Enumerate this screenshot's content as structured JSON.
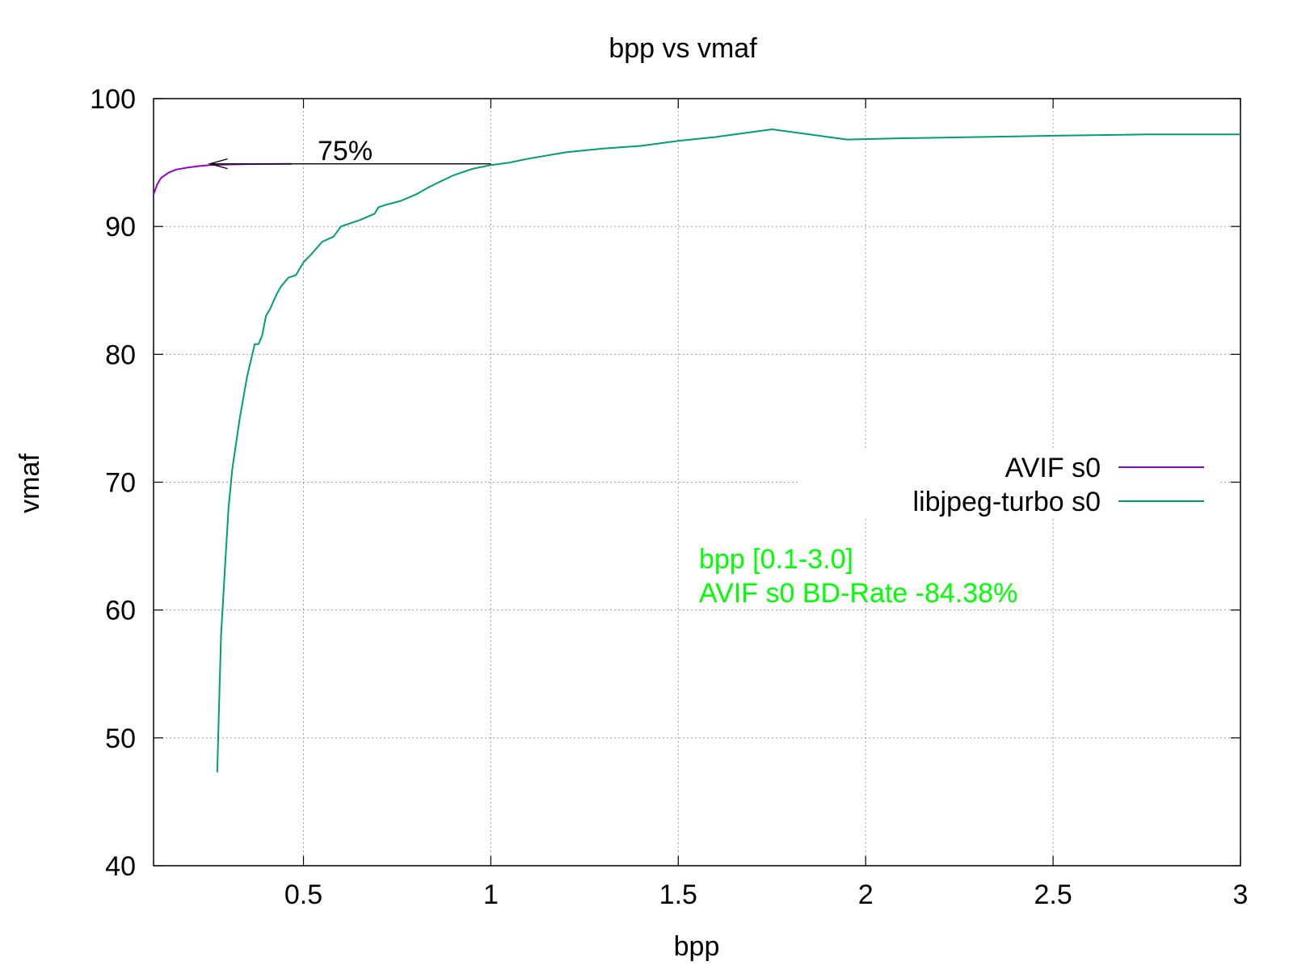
{
  "chart_data": {
    "type": "line",
    "title": "bpp vs vmaf",
    "xlabel": "bpp",
    "ylabel": "vmaf",
    "xlim": [
      0.1,
      3.0
    ],
    "ylim": [
      40,
      100
    ],
    "xticks": [
      0.5,
      1,
      1.5,
      2,
      2.5,
      3
    ],
    "xtick_labels": [
      "0.5",
      "1",
      "1.5",
      "2",
      "2.5",
      "3"
    ],
    "yticks": [
      40,
      50,
      60,
      70,
      80,
      90,
      100
    ],
    "ytick_labels": [
      "40",
      "50",
      "60",
      "70",
      "80",
      "90",
      "100"
    ],
    "grid": true,
    "legend_position": "center-right",
    "series": [
      {
        "name": "AVIF s0",
        "color": "#9400d3",
        "x": [
          0.1,
          0.11,
          0.12,
          0.14,
          0.16,
          0.19,
          0.22,
          0.25,
          0.3,
          0.36,
          0.47
        ],
        "y": [
          92.5,
          93.3,
          93.8,
          94.2,
          94.45,
          94.6,
          94.72,
          94.8,
          94.85,
          94.88,
          94.9
        ]
      },
      {
        "name": "libjpeg-turbo s0",
        "color": "#009e73",
        "x": [
          0.27,
          0.28,
          0.29,
          0.3,
          0.31,
          0.33,
          0.35,
          0.37,
          0.38,
          0.39,
          0.4,
          0.41,
          0.43,
          0.44,
          0.46,
          0.48,
          0.5,
          0.52,
          0.55,
          0.58,
          0.6,
          0.63,
          0.65,
          0.69,
          0.7,
          0.72,
          0.76,
          0.8,
          0.83,
          0.85,
          0.9,
          0.95,
          1.0,
          1.05,
          1.1,
          1.2,
          1.3,
          1.4,
          1.5,
          1.6,
          1.7,
          1.75,
          1.85,
          1.95,
          2.1,
          2.3,
          2.5,
          2.75,
          3.0
        ],
        "y": [
          47.3,
          58.0,
          63.0,
          68.0,
          71.0,
          75.0,
          78.3,
          80.8,
          80.8,
          81.5,
          83.0,
          83.5,
          84.8,
          85.3,
          86.0,
          86.2,
          87.2,
          87.8,
          88.8,
          89.2,
          90.0,
          90.3,
          90.5,
          91.0,
          91.5,
          91.7,
          92.0,
          92.5,
          93.0,
          93.3,
          94.0,
          94.5,
          94.8,
          95.0,
          95.3,
          95.8,
          96.1,
          96.3,
          96.7,
          97.0,
          97.4,
          97.6,
          97.2,
          96.8,
          96.9,
          97.0,
          97.1,
          97.2,
          97.2
        ]
      }
    ],
    "annotations": {
      "arrow_label": "75%",
      "arrow_from": [
        1.0,
        94.9
      ],
      "arrow_to": [
        0.25,
        94.9
      ],
      "bd_range_text": "bpp [0.1-3.0]",
      "bd_rate_text": "AVIF s0 BD-Rate -84.38%",
      "bd_color": "#00ff00"
    }
  }
}
